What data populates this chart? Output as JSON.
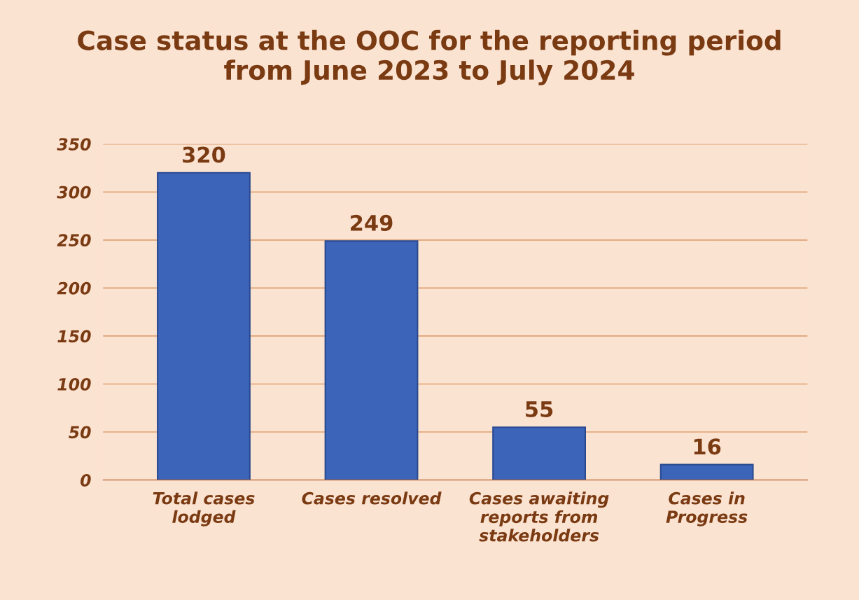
{
  "chart_data": {
    "type": "bar",
    "title": "Case status at the OOC for the reporting period\nfrom June 2023 to July 2024",
    "categories": [
      "Total cases\nlodged",
      "Cases resolved",
      "Cases awaiting\nreports from\nstakeholders",
      "Cases in\nProgress"
    ],
    "values": [
      320,
      249,
      55,
      16
    ],
    "color": "#3c64b8",
    "ylim": [
      0,
      350
    ],
    "yticks": [
      0,
      50,
      100,
      150,
      200,
      250,
      300,
      350
    ],
    "grid": "y",
    "data_labels": true
  }
}
